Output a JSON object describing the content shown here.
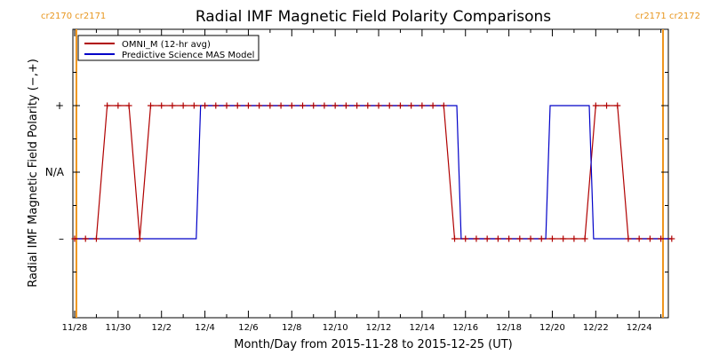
{
  "chart_data": {
    "type": "line",
    "title": "Radial IMF Magnetic Field Polarity Comparisons",
    "xlabel": "Month/Day from 2015-11-28 to 2015-12-25 (UT)",
    "ylabel": "Radial IMF Magnetic Field Polarity (−,+)",
    "x_unit": "days after 2015-11-28 00:00 UT",
    "xlim": [
      0,
      27.5
    ],
    "ylim": [
      -1.7,
      1.7
    ],
    "y_tick_values": [
      1,
      0,
      -1
    ],
    "y_tick_labels": [
      "+",
      "N/A",
      "–"
    ],
    "x_tick_values": [
      0,
      1,
      2,
      3,
      4,
      5,
      6,
      7,
      8,
      9,
      10,
      11,
      12,
      13,
      14,
      15,
      16,
      17,
      18,
      19,
      20,
      21,
      22,
      23,
      24,
      25,
      26,
      27
    ],
    "x_tick_labels": [
      "11/28",
      "11/30",
      "12/2",
      "12/4",
      "12/6",
      "12/8",
      "12/10",
      "12/12",
      "12/14",
      "12/16",
      "12/18",
      "12/20",
      "12/22",
      "12/24"
    ],
    "x_tick_label_every": 2,
    "carrington_markers": [
      {
        "x": 0.08,
        "labels": [
          "cr2170",
          "cr2171"
        ]
      },
      {
        "x": 27.5,
        "labels": [
          "cr2171",
          "cr2172"
        ]
      }
    ],
    "grid": false,
    "legend_position": "top-left",
    "series": [
      {
        "name": "OMNI_M (12-hr avg)",
        "color": "#b00000",
        "marker": "+",
        "x": [
          0,
          0.5,
          1,
          1.5,
          2,
          2.5,
          3,
          3.5,
          4,
          4.5,
          5,
          5.5,
          6,
          6.5,
          7,
          7.5,
          8,
          8.5,
          9,
          9.5,
          10,
          10.5,
          11,
          11.5,
          12,
          12.5,
          13,
          13.5,
          14,
          14.5,
          15,
          15.5,
          16,
          16.5,
          17,
          17.5,
          18,
          18.5,
          19,
          19.5,
          20,
          20.5,
          21,
          21.5,
          22,
          22.5,
          23,
          23.5,
          24,
          24.5,
          25,
          25.5,
          26,
          26.5,
          27,
          27.5
        ],
        "y": [
          -1,
          -1,
          -1,
          1,
          1,
          1,
          -1,
          1,
          1,
          1,
          1,
          1,
          1,
          1,
          1,
          1,
          1,
          1,
          1,
          1,
          1,
          1,
          1,
          1,
          1,
          1,
          1,
          1,
          1,
          1,
          1,
          1,
          1,
          1,
          1,
          -1,
          -1,
          -1,
          -1,
          -1,
          -1,
          -1,
          -1,
          -1,
          -1,
          -1,
          -1,
          -1,
          1,
          1,
          1,
          -1,
          -1,
          -1,
          -1,
          -1
        ]
      },
      {
        "name": "Predictive Science MAS Model",
        "color": "#0000c8",
        "x": [
          0,
          5.6,
          5.8,
          17.6,
          17.8,
          21.7,
          21.9,
          23.7,
          23.9,
          27.5
        ],
        "y": [
          -1,
          -1,
          1,
          1,
          -1,
          -1,
          1,
          1,
          -1,
          -1
        ]
      }
    ]
  }
}
